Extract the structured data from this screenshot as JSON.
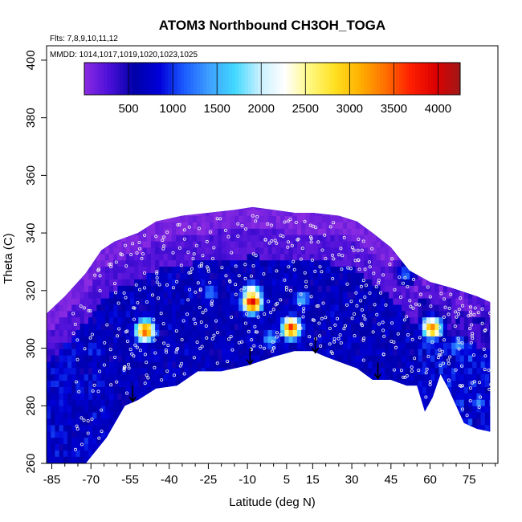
{
  "chart_data": {
    "type": "heatmap",
    "title": "ATOM3 Northbound CH3OH_TOGA",
    "flights_note": "Flts: 7,8,9,10,11,12",
    "dates_note": "MMDD: 1014,1017,1019,1020,1023,1025",
    "xlabel": "Latitude (deg N)",
    "ylabel": "Theta (C)",
    "xlim": [
      -87,
      86
    ],
    "ylim": [
      260,
      405
    ],
    "x_ticks": [
      -85,
      -70,
      -55,
      -40,
      -25,
      -10,
      5,
      15,
      30,
      45,
      60,
      75
    ],
    "y_ticks": [
      260,
      280,
      300,
      320,
      340,
      360,
      380,
      400
    ],
    "colorbar": {
      "range": [
        0,
        4250
      ],
      "ticks": [
        500,
        1000,
        1500,
        2000,
        2500,
        3000,
        3500,
        4000
      ],
      "colors": [
        "#8a2be2",
        "#4b0fd8",
        "#0000a8",
        "#0000d8",
        "#1c5cff",
        "#3ea0ff",
        "#40d8ff",
        "#c8f0ff",
        "#ffffff",
        "#fff880",
        "#ffe020",
        "#ffb000",
        "#ff7000",
        "#ff2000",
        "#dd0000",
        "#a01818"
      ]
    },
    "envelope": {
      "upper": [
        [
          -87,
          312
        ],
        [
          -80,
          318
        ],
        [
          -72,
          326
        ],
        [
          -66,
          334
        ],
        [
          -61,
          337
        ],
        [
          -52,
          340
        ],
        [
          -45,
          344
        ],
        [
          -35,
          346
        ],
        [
          -25,
          347
        ],
        [
          -15,
          348
        ],
        [
          -8,
          349
        ],
        [
          0,
          348
        ],
        [
          8,
          347
        ],
        [
          15,
          347
        ],
        [
          25,
          346
        ],
        [
          32,
          344
        ],
        [
          38,
          340
        ],
        [
          45,
          335
        ],
        [
          52,
          327
        ],
        [
          60,
          323
        ],
        [
          68,
          321
        ],
        [
          78,
          318
        ],
        [
          83,
          316
        ]
      ],
      "lower": [
        [
          83,
          271
        ],
        [
          78,
          272
        ],
        [
          73,
          274
        ],
        [
          70,
          280
        ],
        [
          67,
          286
        ],
        [
          64,
          291
        ],
        [
          61,
          283
        ],
        [
          58,
          278
        ],
        [
          55,
          287
        ],
        [
          51,
          287
        ],
        [
          45,
          289
        ],
        [
          38,
          289
        ],
        [
          32,
          293
        ],
        [
          26,
          295
        ],
        [
          20,
          297
        ],
        [
          15,
          299
        ],
        [
          8,
          299
        ],
        [
          0,
          297
        ],
        [
          -10,
          294
        ],
        [
          -20,
          292
        ],
        [
          -29,
          292
        ],
        [
          -37,
          287
        ],
        [
          -45,
          286
        ],
        [
          -52,
          282
        ],
        [
          -57,
          280
        ],
        [
          -64,
          269
        ],
        [
          -72,
          260
        ],
        [
          -78,
          260
        ],
        [
          -87,
          260
        ]
      ]
    },
    "hotspots": [
      {
        "lat": -9,
        "theta": 315,
        "value": 4000
      },
      {
        "lat": -9,
        "theta": 318,
        "value": 2600
      },
      {
        "lat": 6,
        "theta": 306,
        "value": 3600
      },
      {
        "lat": -50,
        "theta": 305,
        "value": 3500
      },
      {
        "lat": 60,
        "theta": 306,
        "value": 3300
      },
      {
        "lat": 10,
        "theta": 316,
        "value": 1500
      },
      {
        "lat": -25,
        "theta": 318,
        "value": 1300
      },
      {
        "lat": 70,
        "theta": 300,
        "value": 1400
      },
      {
        "lat": 78,
        "theta": 280,
        "value": 1300
      },
      {
        "lat": 50,
        "theta": 325,
        "value": 1200
      },
      {
        "lat": -2,
        "theta": 302,
        "value": 1500
      }
    ],
    "arrows_lat": [
      -54,
      -9,
      16,
      40
    ],
    "arrows_theta_top": [
      287,
      300,
      304,
      295
    ]
  }
}
